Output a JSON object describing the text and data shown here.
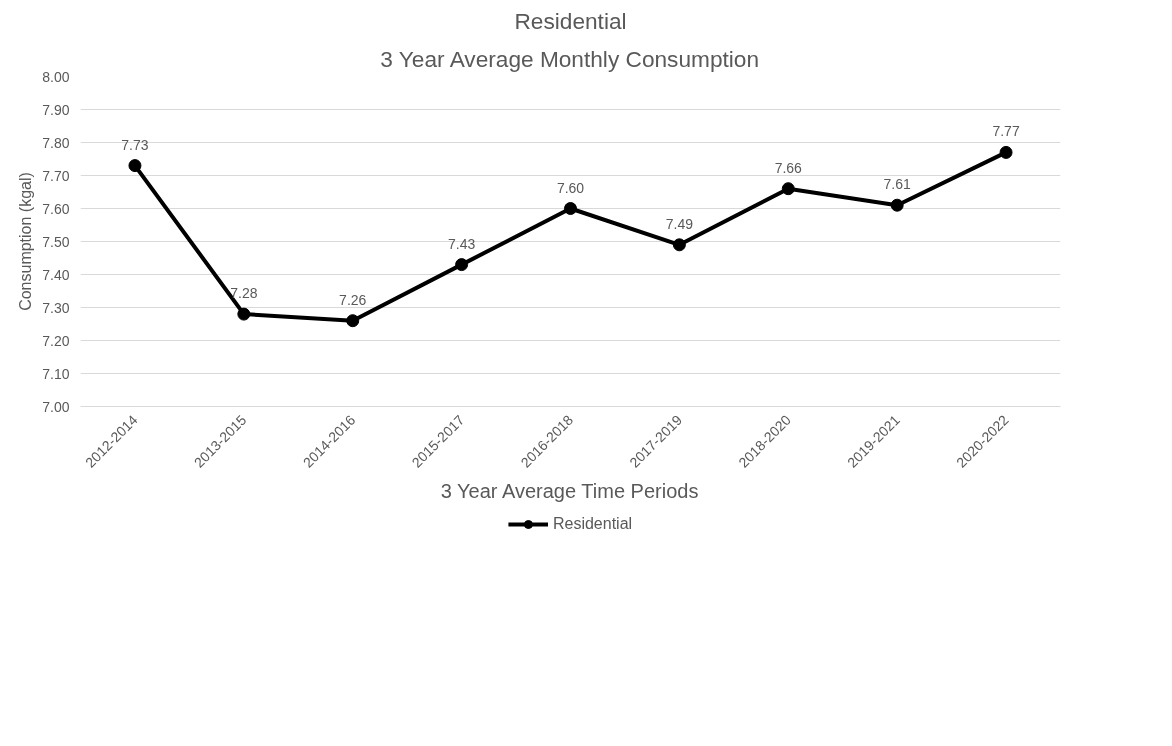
{
  "chart_data": {
    "type": "line",
    "title": "Residential",
    "subtitle": "3 Year Average Monthly Consumption",
    "xlabel": "3 Year Average Time Periods",
    "ylabel": "Consumption (kgal)",
    "categories": [
      "2012-2014",
      "2013-2015",
      "2014-2016",
      "2015-2017",
      "2016-2018",
      "2017-2019",
      "2018-2020",
      "2019-2021",
      "2020-2022"
    ],
    "series": [
      {
        "name": "Residential",
        "color": "#000000",
        "values": [
          7.73,
          7.28,
          7.26,
          7.43,
          7.6,
          7.49,
          7.66,
          7.61,
          7.77
        ]
      }
    ],
    "ylim": [
      7.0,
      8.0
    ],
    "yticks": [
      {
        "value": 7.0,
        "label": "7.00"
      },
      {
        "value": 7.1,
        "label": "7.10"
      },
      {
        "value": 7.2,
        "label": "7.20"
      },
      {
        "value": 7.3,
        "label": "7.30"
      },
      {
        "value": 7.4,
        "label": "7.40"
      },
      {
        "value": 7.5,
        "label": "7.50"
      },
      {
        "value": 7.6,
        "label": "7.60"
      },
      {
        "value": 7.7,
        "label": "7.70"
      },
      {
        "value": 7.8,
        "label": "7.80"
      },
      {
        "value": 7.9,
        "label": "7.90"
      },
      {
        "value": 8.0,
        "label": "8.00"
      }
    ],
    "value_labels": [
      "7.73",
      "7.28",
      "7.26",
      "7.43",
      "7.60",
      "7.49",
      "7.66",
      "7.61",
      "7.77"
    ],
    "grid": "y",
    "legend": "bottom",
    "marker": "circle",
    "line_style": "solid"
  }
}
